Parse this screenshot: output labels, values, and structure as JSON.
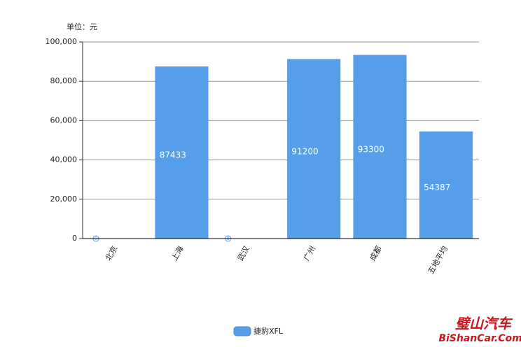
{
  "chart_data": {
    "type": "bar",
    "y_label": "单位：元",
    "categories": [
      "北京",
      "上海",
      "武汉",
      "广州",
      "成都",
      "五地平均"
    ],
    "series": [
      {
        "name": "捷豹XFL",
        "color": "#559fea",
        "values": [
          0,
          87433,
          0,
          91200,
          93300,
          54387
        ]
      }
    ],
    "ylim": [
      0,
      100000
    ],
    "yticks": [
      0,
      {
        "value": 20000,
        "label": "20,000"
      },
      {
        "value": 40000,
        "label": "40,000"
      },
      {
        "value": 60000,
        "label": "60,000"
      },
      {
        "value": 80000,
        "label": "80,000"
      },
      {
        "value": 100000,
        "label": "100,000"
      }
    ],
    "grid": true,
    "legend": "bottom"
  },
  "watermark": {
    "name": "璧山汽车",
    "site": "BiShanCar.Com"
  }
}
